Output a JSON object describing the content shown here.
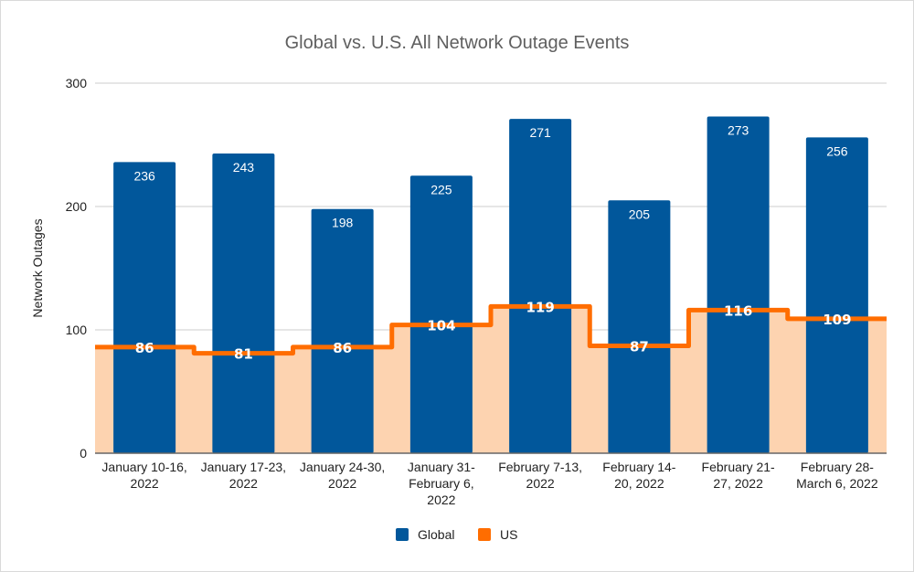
{
  "chart_data": {
    "type": "bar",
    "title": "Global vs. U.S. All Network Outage Events",
    "xlabel": "",
    "ylabel": "Network Outages",
    "ylim": [
      0,
      300
    ],
    "yticks": [
      0,
      100,
      200,
      300
    ],
    "grid": true,
    "legend_position": "bottom",
    "categories": [
      [
        "January 10-16,",
        "2022"
      ],
      [
        "January 17-23,",
        "2022"
      ],
      [
        "January 24-30,",
        "2022"
      ],
      [
        "January 31-",
        "February 6,",
        "2022"
      ],
      [
        "February 7-13,",
        "2022"
      ],
      [
        "February 14-",
        "20, 2022"
      ],
      [
        "February 21-",
        "27, 2022"
      ],
      [
        "February 28-",
        "March 6, 2022"
      ]
    ],
    "series": [
      {
        "name": "Global",
        "type": "bar",
        "color": "#01579b",
        "values": [
          236,
          243,
          198,
          225,
          271,
          205,
          273,
          256
        ]
      },
      {
        "name": "US",
        "type": "stepped-area",
        "color": "#ff6d00",
        "fill_color": "#fdd3b0",
        "values": [
          86,
          81,
          86,
          104,
          119,
          87,
          116,
          109
        ]
      }
    ]
  }
}
